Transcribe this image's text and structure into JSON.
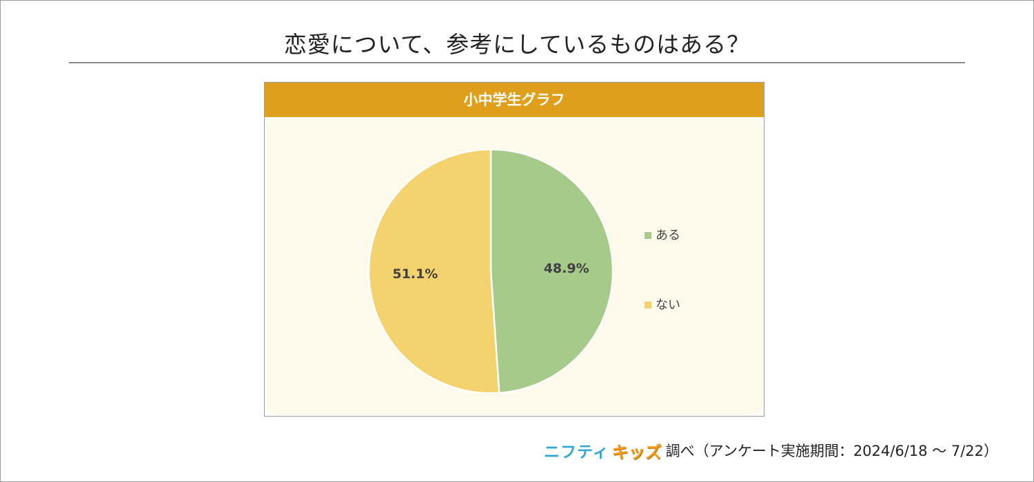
{
  "page": {
    "title": "恋愛について、参考にしているものはある？"
  },
  "panel": {
    "header": "小中学生グラフ"
  },
  "chart_data": {
    "type": "pie",
    "title": "小中学生グラフ",
    "categories": [
      "ある",
      "ない"
    ],
    "values": [
      48.9,
      51.1
    ],
    "value_labels": [
      "48.9%",
      "51.1%"
    ],
    "colors": [
      "#a6ca8a",
      "#f4d26d"
    ],
    "start_angle_deg": 0,
    "direction": "clockwise",
    "legend_position": "right"
  },
  "footer": {
    "brand_nifty": "ニフティ",
    "brand_kids": "キッズ",
    "note": "調べ（アンケート実施期間：2024/6/18 〜 7/22）"
  }
}
